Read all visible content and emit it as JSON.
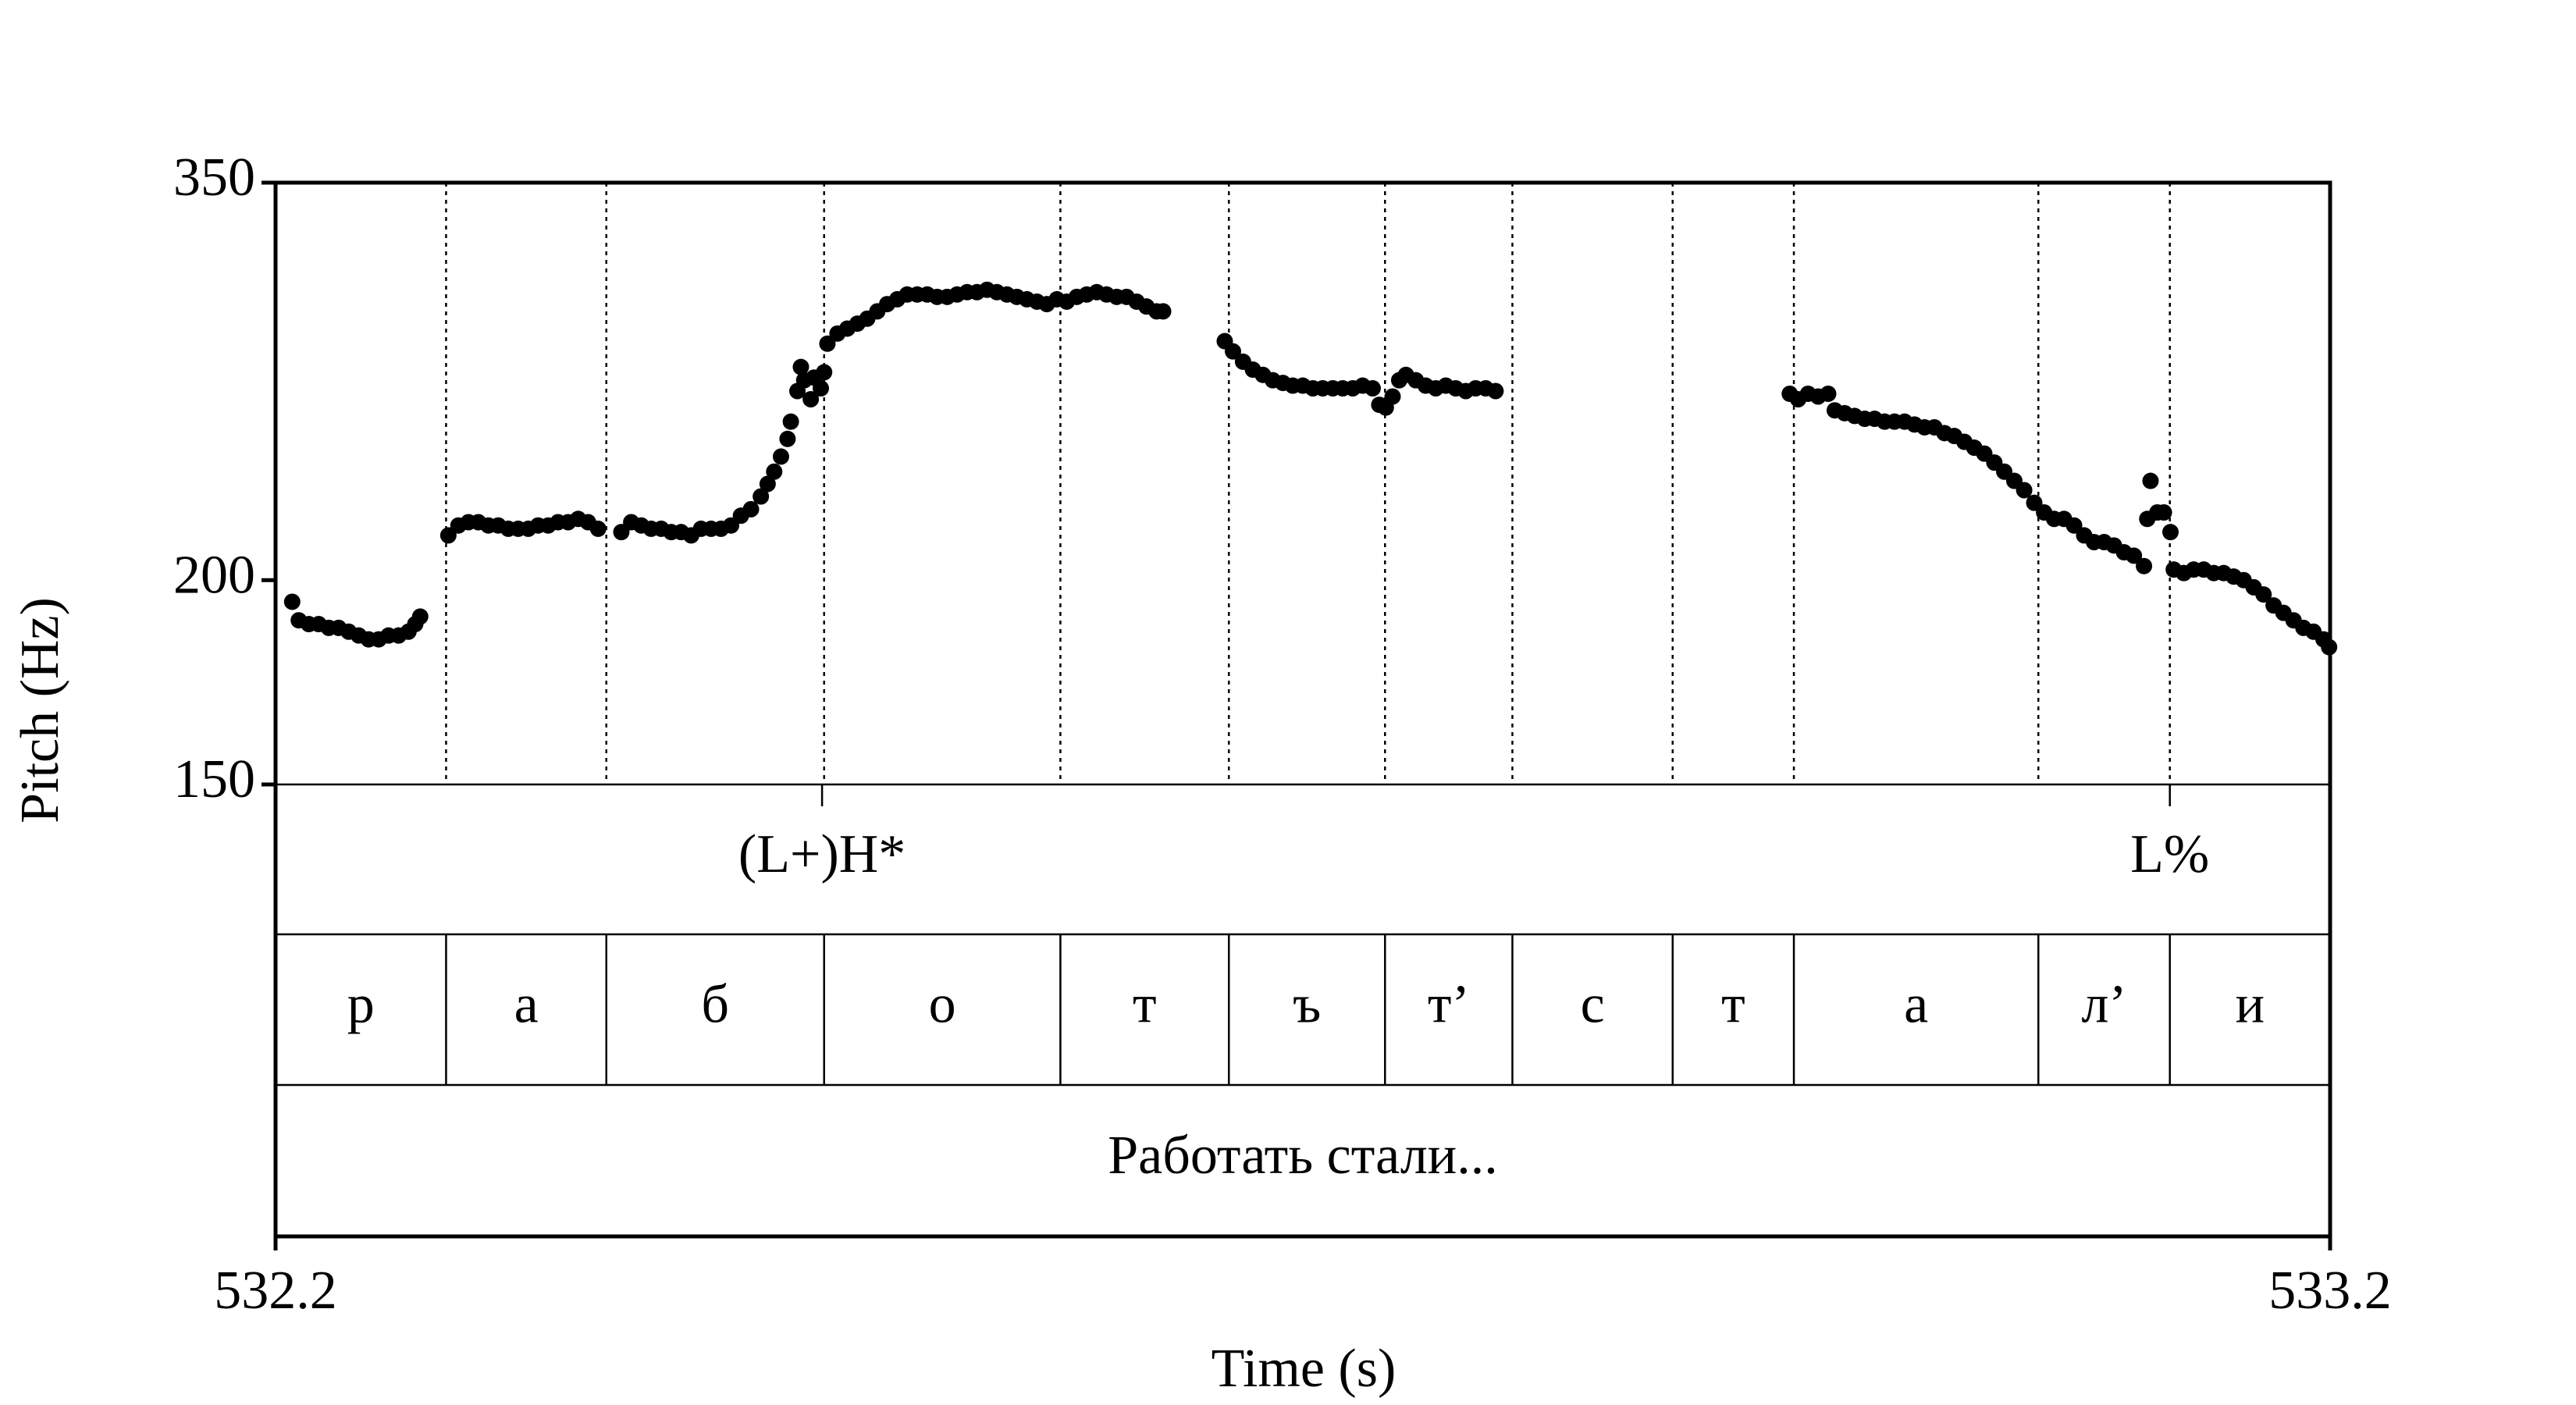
{
  "chart_data": {
    "type": "scatter",
    "xlabel": "Time (s)",
    "ylabel": "Pitch (Hz)",
    "xlim": [
      532.2,
      533.2
    ],
    "xticks": [
      532.2,
      533.2
    ],
    "ylim": [
      150,
      350
    ],
    "yticks": [
      150,
      200,
      350
    ],
    "log_y": true,
    "color": "#000000",
    "x": [
      532.2081,
      532.2113,
      532.2162,
      532.221,
      532.2259,
      532.2307,
      532.2356,
      532.2405,
      532.2453,
      532.2502,
      532.255,
      532.2599,
      532.2647,
      532.268,
      532.2704,
      532.2841,
      532.289,
      532.2939,
      532.2987,
      532.3036,
      532.3084,
      532.3133,
      532.3181,
      532.323,
      532.3278,
      532.3327,
      532.3375,
      532.3424,
      532.3473,
      532.3521,
      532.357,
      532.3683,
      532.3731,
      532.378,
      532.3828,
      532.3877,
      532.3926,
      532.3974,
      532.4023,
      532.4071,
      532.412,
      532.4168,
      532.4217,
      532.4265,
      532.4314,
      532.4362,
      532.4395,
      532.4427,
      532.446,
      532.4492,
      532.4508,
      532.454,
      532.4557,
      532.4573,
      532.4605,
      532.4621,
      532.4654,
      532.467,
      532.4686,
      532.4735,
      532.4783,
      532.4832,
      532.488,
      532.4929,
      532.4977,
      532.5026,
      532.5074,
      532.5123,
      532.5172,
      532.522,
      532.5269,
      532.5317,
      532.5366,
      532.5414,
      532.5463,
      532.5511,
      532.556,
      532.5608,
      532.5657,
      532.5706,
      532.5754,
      532.5803,
      532.5851,
      532.59,
      532.5948,
      532.5997,
      532.6045,
      532.6094,
      532.6142,
      532.6191,
      532.6239,
      532.6288,
      532.632,
      532.662,
      532.666,
      532.6709,
      532.6757,
      532.6806,
      532.6854,
      532.6903,
      532.6951,
      532.7,
      532.7049,
      532.7097,
      532.7146,
      532.7194,
      532.7243,
      532.7291,
      532.734,
      532.7372,
      532.7404,
      532.7437,
      532.7469,
      532.7502,
      532.755,
      532.7598,
      532.7647,
      532.7696,
      532.7744,
      532.7793,
      532.7841,
      532.789,
      532.7938,
      532.937,
      532.9411,
      532.9459,
      532.9508,
      532.9557,
      532.9589,
      532.9637,
      532.9686,
      532.9735,
      532.9783,
      532.9832,
      532.988,
      532.9929,
      532.9977,
      533.0026,
      533.0074,
      533.0123,
      533.0171,
      533.022,
      533.0268,
      533.0317,
      533.0366,
      533.0414,
      533.0463,
      533.0511,
      533.056,
      533.0608,
      533.0657,
      533.0705,
      533.0754,
      533.0803,
      533.0851,
      533.09,
      533.0948,
      533.0997,
      533.1045,
      533.1094,
      533.111,
      533.1126,
      533.1159,
      533.1191,
      533.1223,
      533.1239,
      533.1288,
      533.1336,
      533.1385,
      533.1434,
      533.1482,
      533.1531,
      533.1579,
      533.1628,
      533.1676,
      533.1725,
      533.1773,
      533.1822,
      533.187,
      533.1919,
      533.1968,
      533.1995
    ],
    "values": [
      194,
      189,
      188,
      188,
      187,
      187,
      186,
      185,
      184,
      184,
      185,
      185,
      186,
      188,
      190,
      213,
      216,
      217,
      217,
      216,
      216,
      215,
      215,
      215,
      216,
      216,
      217,
      217,
      218,
      217,
      215,
      214,
      217,
      216,
      215,
      215,
      214,
      214,
      213,
      215,
      215,
      215,
      216,
      219,
      221,
      225,
      229,
      233,
      238,
      244,
      250,
      261,
      270,
      265,
      258,
      266,
      262,
      268,
      279,
      283,
      285,
      287,
      289,
      292,
      295,
      297,
      299,
      299,
      299,
      298,
      298,
      299,
      300,
      300,
      301,
      300,
      299,
      298,
      297,
      296,
      295,
      297,
      296,
      298,
      299,
      300,
      299,
      298,
      298,
      296,
      294,
      292,
      292,
      280,
      276,
      272,
      269,
      267,
      265,
      264,
      263,
      263,
      262,
      262,
      262,
      262,
      262,
      263,
      262,
      256,
      255,
      259,
      265,
      267,
      265,
      263,
      262,
      263,
      262,
      261,
      262,
      262,
      261,
      260,
      258,
      260,
      259,
      260,
      254,
      253,
      252,
      251,
      251,
      250,
      250,
      250,
      249,
      248,
      248,
      246,
      245,
      243,
      241,
      239,
      236,
      233,
      230,
      227,
      223,
      220,
      218,
      218,
      216,
      213,
      211,
      211,
      210,
      208,
      207,
      204,
      218,
      230,
      220,
      220,
      214,
      203,
      202,
      203,
      203,
      202,
      202,
      201,
      200,
      198,
      196,
      193,
      191,
      189,
      187,
      186,
      184,
      182
    ],
    "tone_tier": {
      "times": [
        532.466,
        533.122
      ],
      "labels": [
        "(L+)H*",
        "L%"
      ]
    },
    "segment_tier": {
      "boundaries": [
        532.283,
        532.361,
        532.467,
        532.582,
        532.664,
        532.74,
        532.802,
        532.88,
        532.939,
        533.058,
        533.122
      ],
      "labels": [
        "р",
        "а",
        "б",
        "о",
        "т",
        "ъ",
        "т’",
        "с",
        "т",
        "а",
        "л’",
        "и"
      ]
    },
    "text_tier": {
      "labels": [
        "Работать стали..."
      ]
    }
  }
}
